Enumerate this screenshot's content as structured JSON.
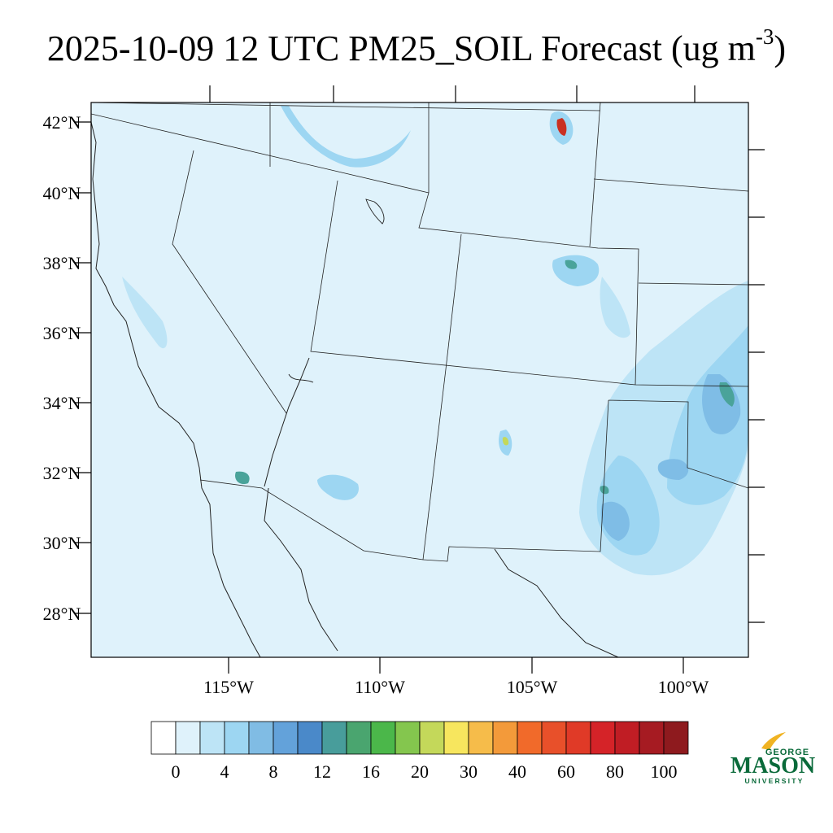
{
  "title": {
    "main": "2025-10-09 12 UTC PM25_SOIL Forecast (ug m",
    "exponent": "-3",
    "close": ")"
  },
  "map": {
    "lat_labels": [
      "42°N",
      "40°N",
      "38°N",
      "36°N",
      "34°N",
      "32°N",
      "30°N",
      "28°N"
    ],
    "lon_labels": [
      "115°W",
      "110°W",
      "105°W",
      "100°W"
    ],
    "background_color": "#dff2fb",
    "plume_colors": [
      "#bde4f6",
      "#9dd6f2",
      "#7fbde6",
      "#4d8fcf",
      "#4aa39a",
      "#c93021"
    ]
  },
  "colorbar": {
    "colors": [
      "#ffffff",
      "#dff2fb",
      "#bde4f6",
      "#9dd6f2",
      "#80bce4",
      "#63a2da",
      "#4a89c9",
      "#489d9b",
      "#4aa56f",
      "#4bb74a",
      "#84c64e",
      "#c4d85a",
      "#f7e65e",
      "#f6bc4a",
      "#f39a3a",
      "#f16a2a",
      "#e8502a",
      "#e03a27",
      "#d52328",
      "#c01d24",
      "#a61b22",
      "#8e1a1e"
    ],
    "labels": [
      "0",
      "4",
      "8",
      "12",
      "16",
      "20",
      "30",
      "40",
      "60",
      "80",
      "100"
    ]
  },
  "logo": {
    "top": "GEORGE",
    "name": "MASON",
    "bottom": "UNIVERSITY",
    "color": "#0a6a3a",
    "accent": "#f0b323"
  }
}
